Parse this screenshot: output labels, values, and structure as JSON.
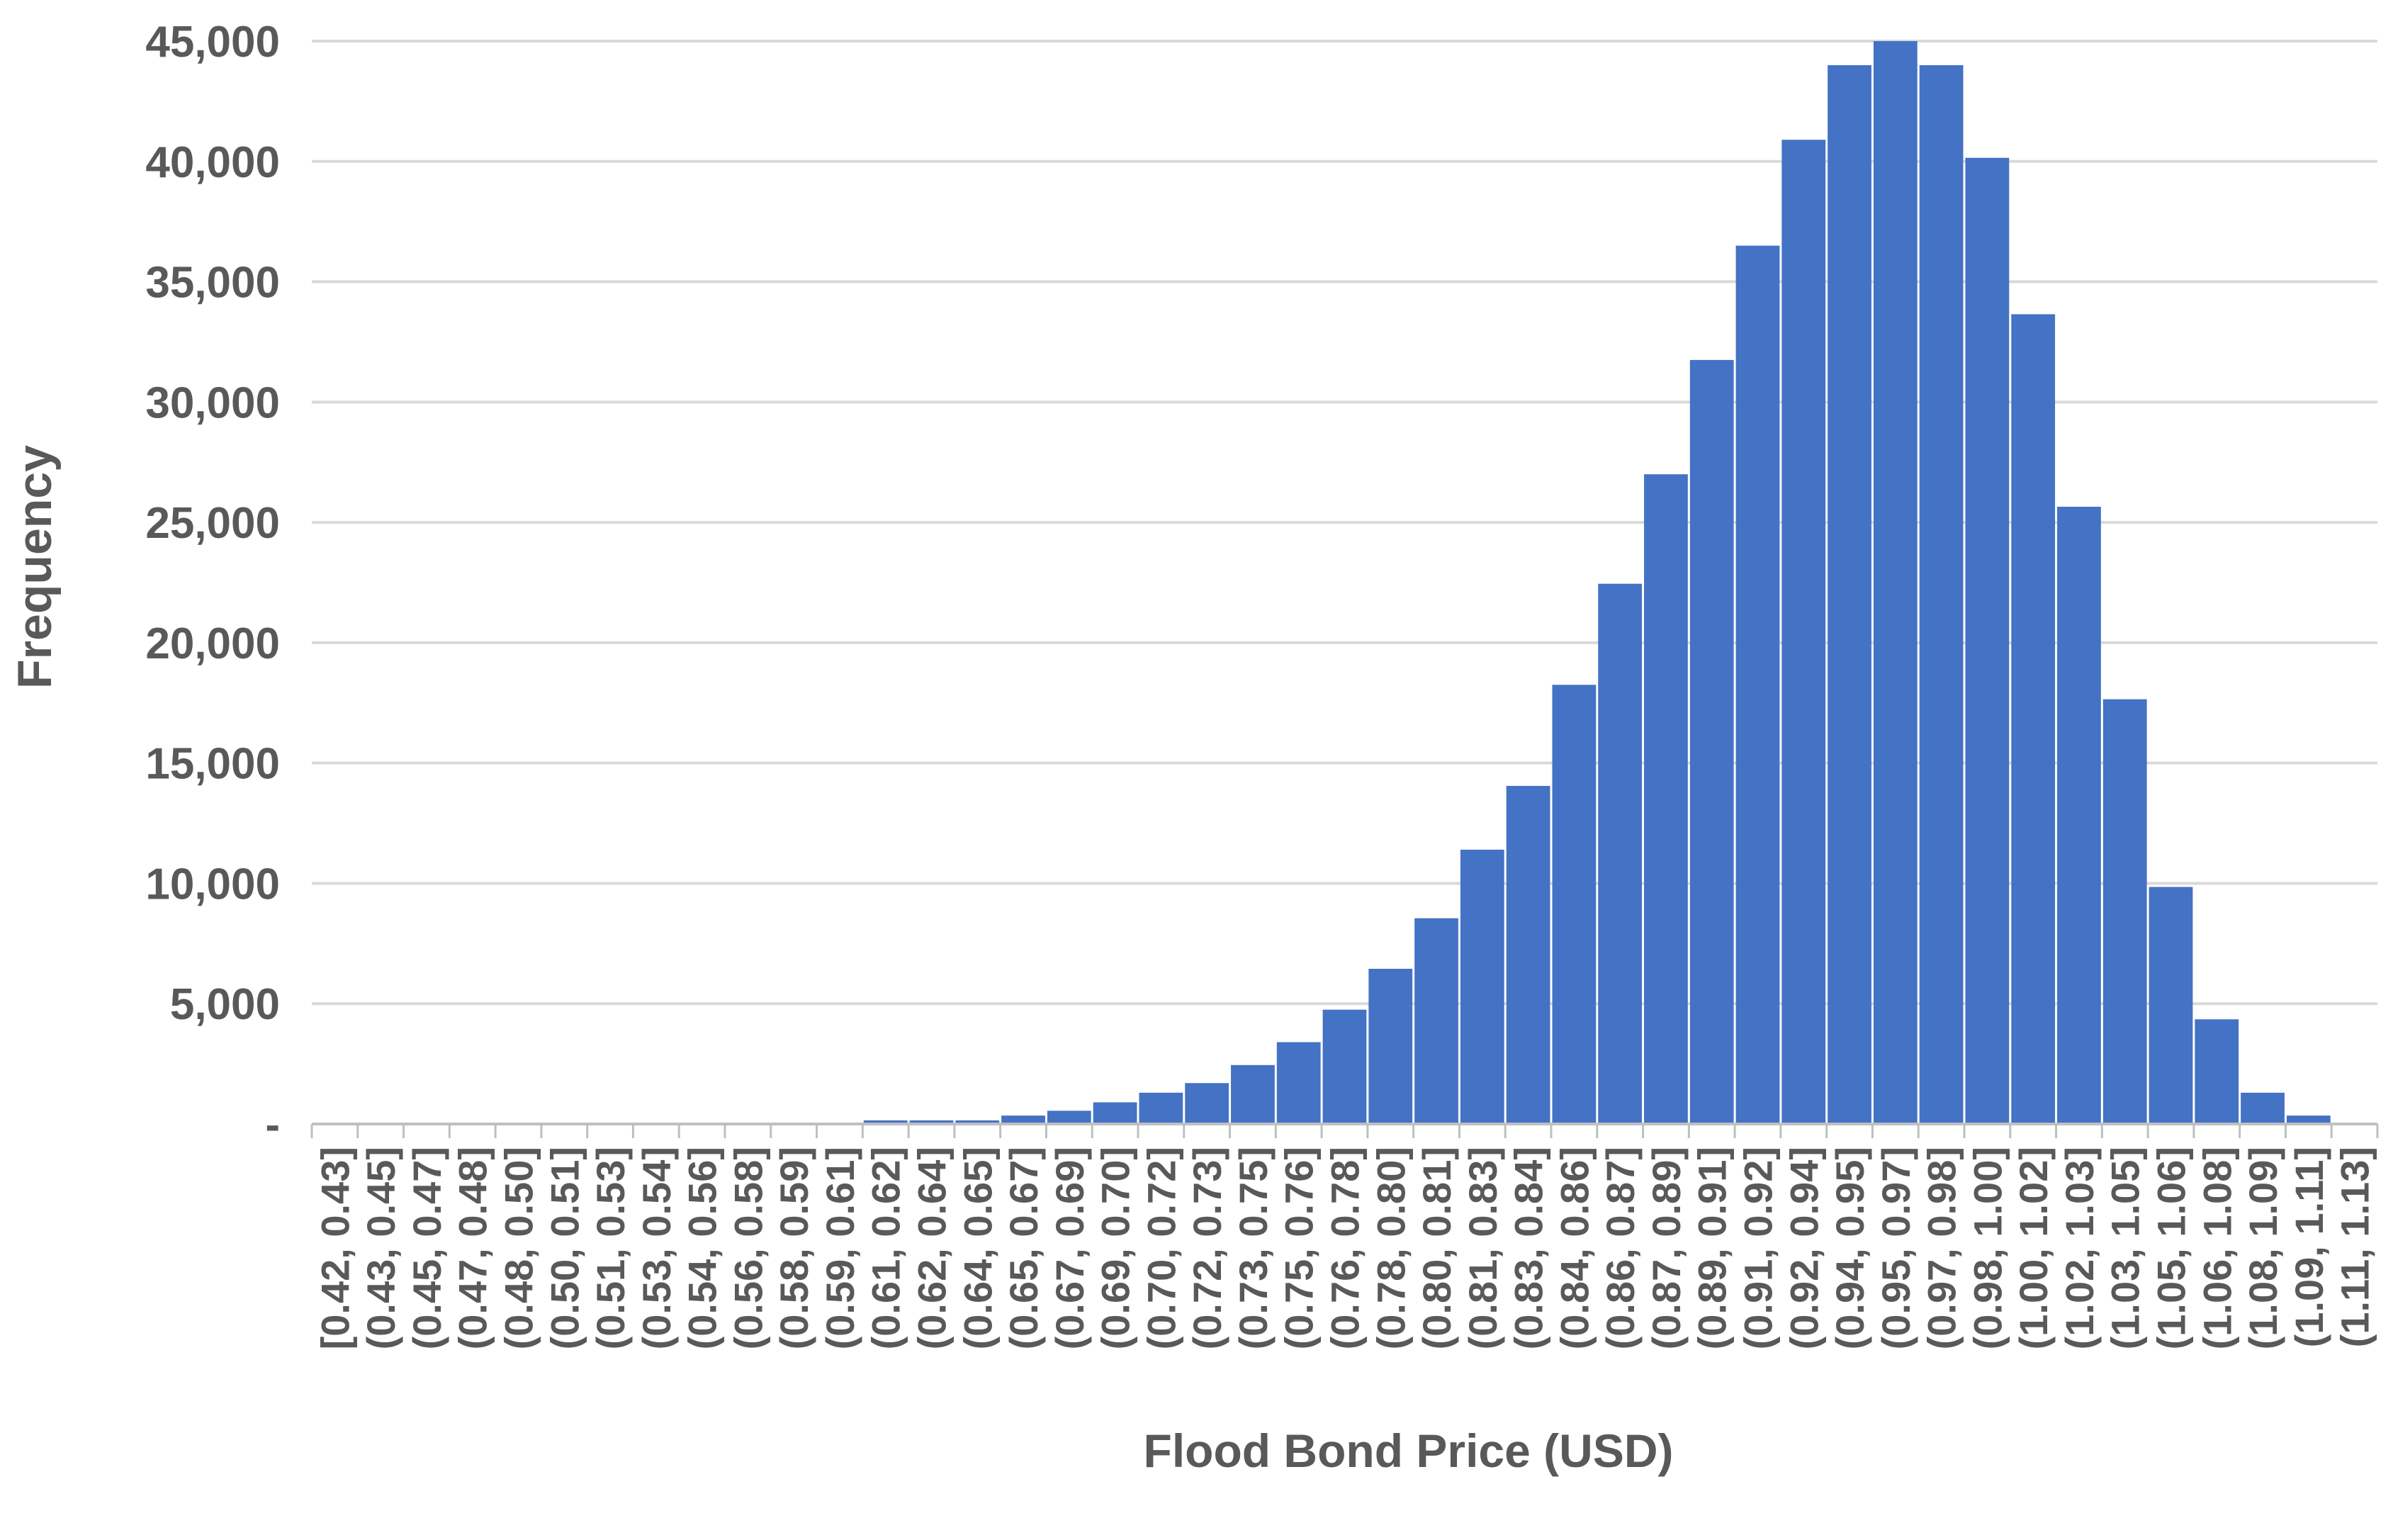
{
  "chart_data": {
    "type": "bar",
    "title": "",
    "xlabel": "Flood Bond Price (USD)",
    "ylabel": "Frequency",
    "ylim": [
      0,
      45000
    ],
    "yticks": [
      0,
      5000,
      10000,
      15000,
      20000,
      25000,
      30000,
      35000,
      40000,
      45000
    ],
    "ytick_labels": [
      "-",
      "5,000",
      "10,000",
      "15,000",
      "20,000",
      "25,000",
      "30,000",
      "35,000",
      "40,000",
      "45,000"
    ],
    "grid": true,
    "legend": "none",
    "categories": [
      "[0.42, 0.43]",
      "(0.43, 0.45]",
      "(0.45, 0.47]",
      "(0.47, 0.48]",
      "(0.48, 0.50]",
      "(0.50, 0.51]",
      "(0.51, 0.53]",
      "(0.53, 0.54]",
      "(0.54, 0.56]",
      "(0.56, 0.58]",
      "(0.58, 0.59]",
      "(0.59, 0.61]",
      "(0.61, 0.62]",
      "(0.62, 0.64]",
      "(0.64, 0.65]",
      "(0.65, 0.67]",
      "(0.67, 0.69]",
      "(0.69, 0.70]",
      "(0.70, 0.72]",
      "(0.72, 0.73]",
      "(0.73, 0.75]",
      "(0.75, 0.76]",
      "(0.76, 0.78]",
      "(0.78, 0.80]",
      "(0.80, 0.81]",
      "(0.81, 0.83]",
      "(0.83, 0.84]",
      "(0.84, 0.86]",
      "(0.86, 0.87]",
      "(0.87, 0.89]",
      "(0.89, 0.91]",
      "(0.91, 0.92]",
      "(0.92, 0.94]",
      "(0.94, 0.95]",
      "(0.95, 0.97]",
      "(0.97, 0.98]",
      "(0.98, 1.00]",
      "(1.00, 1.02]",
      "(1.02, 1.03]",
      "(1.03, 1.05]",
      "(1.05, 1.06]",
      "(1.06, 1.08]",
      "(1.08, 1.09]",
      "(1.09, 1.11]",
      "(1.11, 1.13]"
    ],
    "values": [
      0,
      0,
      0,
      0,
      0,
      0,
      0,
      0,
      0,
      0,
      0,
      0,
      150,
      150,
      150,
      350,
      550,
      900,
      1300,
      1700,
      2450,
      3400,
      4750,
      6450,
      8550,
      11400,
      14050,
      18250,
      22450,
      27000,
      31750,
      36500,
      40900,
      44000,
      45000,
      44000,
      40150,
      33650,
      25650,
      17650,
      9850,
      4350,
      1300,
      350,
      0
    ],
    "bar_color": "#4472C4",
    "grid_color": "#D9D9D9",
    "text_color": "#595959"
  }
}
